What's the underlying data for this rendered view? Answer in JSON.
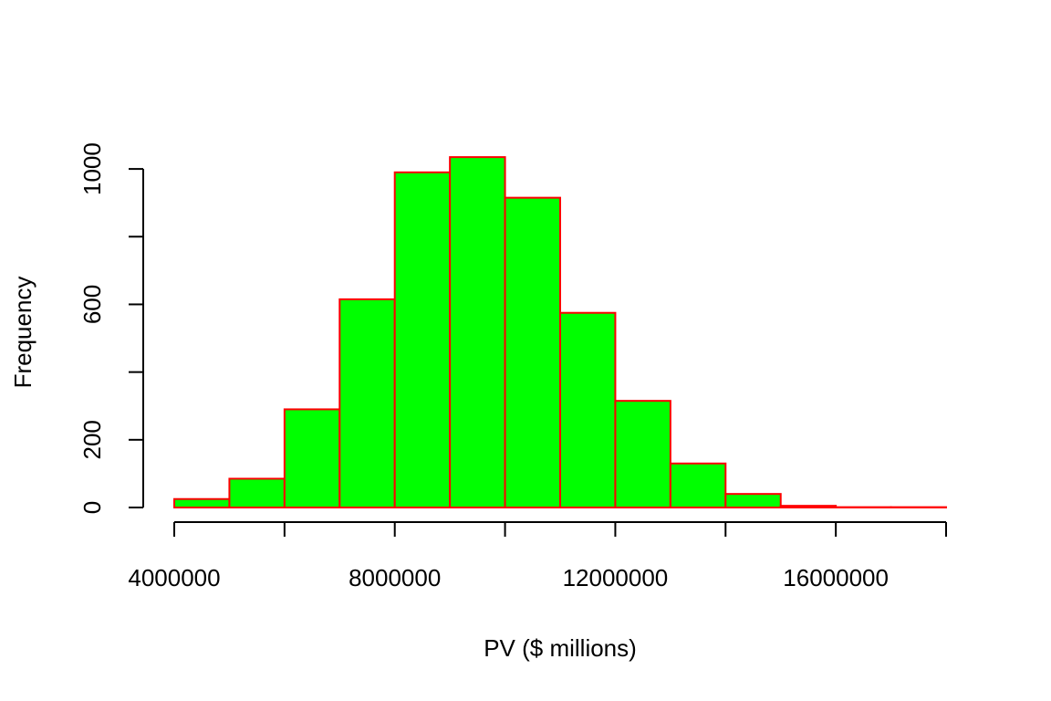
{
  "chart_data": {
    "type": "bar",
    "variant": "histogram",
    "title": "",
    "xlabel": "PV ($ millions)",
    "ylabel": "Frequency",
    "bins": [
      {
        "start": 4000000,
        "end": 5000000,
        "count": 25
      },
      {
        "start": 5000000,
        "end": 6000000,
        "count": 85
      },
      {
        "start": 6000000,
        "end": 7000000,
        "count": 290
      },
      {
        "start": 7000000,
        "end": 8000000,
        "count": 615
      },
      {
        "start": 8000000,
        "end": 9000000,
        "count": 990
      },
      {
        "start": 9000000,
        "end": 10000000,
        "count": 1035
      },
      {
        "start": 10000000,
        "end": 11000000,
        "count": 915
      },
      {
        "start": 11000000,
        "end": 12000000,
        "count": 575
      },
      {
        "start": 12000000,
        "end": 13000000,
        "count": 315
      },
      {
        "start": 13000000,
        "end": 14000000,
        "count": 130
      },
      {
        "start": 14000000,
        "end": 15000000,
        "count": 40
      },
      {
        "start": 15000000,
        "end": 16000000,
        "count": 5
      },
      {
        "start": 16000000,
        "end": 17000000,
        "count": 1
      },
      {
        "start": 17000000,
        "end": 18000000,
        "count": 1
      }
    ],
    "xlim": [
      4000000,
      18000000
    ],
    "ylim": [
      0,
      1050
    ],
    "x_ticks": [
      4000000,
      6000000,
      8000000,
      10000000,
      12000000,
      14000000,
      16000000,
      18000000
    ],
    "x_tick_labels": [
      "4000000",
      "",
      "8000000",
      "",
      "12000000",
      "",
      "16000000",
      ""
    ],
    "y_ticks": [
      0,
      200,
      400,
      600,
      800,
      1000
    ],
    "y_tick_labels": [
      "0",
      "200",
      "",
      "600",
      "",
      "1000"
    ],
    "grid": false,
    "legend": "none",
    "colors": {
      "bar_fill": "#00ff00",
      "bar_border": "#ff0000",
      "axis": "#000000"
    }
  }
}
